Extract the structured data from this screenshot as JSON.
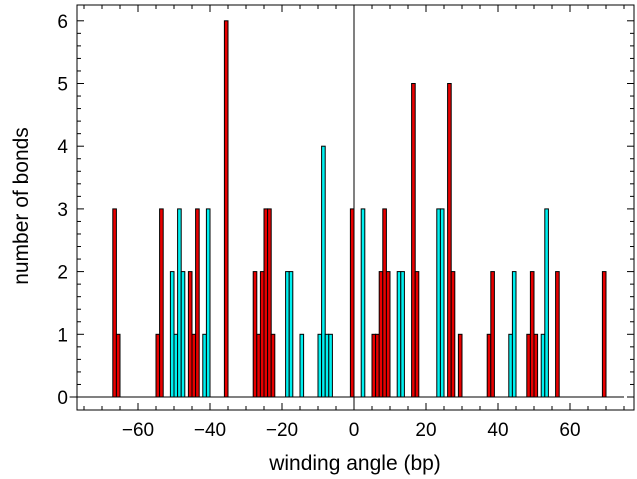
{
  "chart_data": {
    "type": "bar",
    "title": "",
    "xlabel": "winding angle (bp)",
    "ylabel": "number of bonds",
    "xlim": [
      -75,
      75
    ],
    "ylim": [
      0,
      6
    ],
    "x_ticks": [
      -60,
      -40,
      -20,
      0,
      20,
      40,
      60
    ],
    "x_tick_labels": [
      "−60",
      "−40",
      "−20",
      "0",
      "20",
      "40",
      "60"
    ],
    "y_ticks": [
      0,
      1,
      2,
      3,
      4,
      5,
      6
    ],
    "y_tick_labels": [
      "0",
      "1",
      "2",
      "3",
      "4",
      "5",
      "6"
    ],
    "bin_width": 1,
    "grid": false,
    "legend": "none",
    "colors": {
      "red": "#e80000",
      "cyan": "#00f0f0",
      "edge": "#000000"
    },
    "series": [
      {
        "color": "red",
        "bins": [
          [
            -67,
            3
          ],
          [
            -66,
            1
          ],
          [
            -55,
            1
          ],
          [
            -54,
            3
          ],
          [
            -46,
            2
          ],
          [
            -45,
            1
          ],
          [
            -44,
            3
          ],
          [
            -36,
            6
          ],
          [
            -28,
            2
          ],
          [
            -27,
            1
          ],
          [
            -26,
            2
          ],
          [
            -25,
            3
          ],
          [
            -24,
            3
          ],
          [
            -23,
            1
          ],
          [
            -1,
            3
          ],
          [
            5,
            1
          ],
          [
            6,
            1
          ],
          [
            7,
            2
          ],
          [
            8,
            3
          ],
          [
            9,
            2
          ],
          [
            16,
            5
          ],
          [
            17,
            2
          ],
          [
            26,
            5
          ],
          [
            27,
            2
          ],
          [
            29,
            1
          ],
          [
            37,
            1
          ],
          [
            38,
            2
          ],
          [
            48,
            1
          ],
          [
            49,
            2
          ],
          [
            50,
            1
          ],
          [
            56,
            2
          ],
          [
            69,
            2
          ]
        ]
      },
      {
        "color": "cyan",
        "bins": [
          [
            -51,
            2
          ],
          [
            -50,
            1
          ],
          [
            -49,
            3
          ],
          [
            -48,
            2
          ],
          [
            -42,
            1
          ],
          [
            -41,
            3
          ],
          [
            -19,
            2
          ],
          [
            -18,
            2
          ],
          [
            -15,
            1
          ],
          [
            -10,
            1
          ],
          [
            -9,
            4
          ],
          [
            -8,
            1
          ],
          [
            -7,
            1
          ],
          [
            2,
            3
          ],
          [
            12,
            2
          ],
          [
            13,
            2
          ],
          [
            23,
            3
          ],
          [
            24,
            3
          ],
          [
            43,
            1
          ],
          [
            44,
            2
          ],
          [
            52,
            1
          ],
          [
            53,
            3
          ]
        ]
      }
    ]
  }
}
